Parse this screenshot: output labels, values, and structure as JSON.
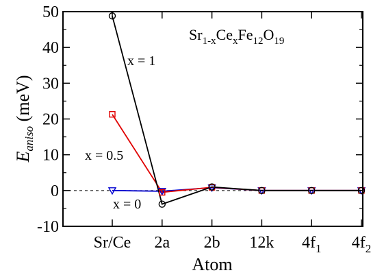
{
  "chart_data": {
    "type": "line",
    "title": {
      "base": "Sr",
      "s1": "1-x",
      "mid1": "Ce",
      "s2": "x",
      "mid2": "Fe",
      "s3": "12",
      "mid3": "O",
      "s4": "19"
    },
    "xlabel": "Atom",
    "ylabel": {
      "main": "E",
      "sub": "aniso",
      "rest": " (meV)"
    },
    "categories": [
      {
        "label": "Sr/Ce",
        "sub": ""
      },
      {
        "label": "2a",
        "sub": ""
      },
      {
        "label": "2b",
        "sub": ""
      },
      {
        "label": "12k",
        "sub": ""
      },
      {
        "label": "4f",
        "sub": "1"
      },
      {
        "label": "4f",
        "sub": "2"
      }
    ],
    "ylim": [
      -10,
      50
    ],
    "yticks": [
      -10,
      0,
      10,
      20,
      30,
      40,
      50
    ],
    "reference_line": 0,
    "grid": false,
    "series": [
      {
        "name": "x = 1",
        "color": "#000000",
        "marker": "circle",
        "values": [
          48.8,
          -3.8,
          1.0,
          0.0,
          0.0,
          0.0
        ]
      },
      {
        "name": "x = 0.5",
        "color": "#e00000",
        "marker": "square",
        "values": [
          21.3,
          -0.5,
          0.9,
          0.0,
          0.0,
          0.0
        ]
      },
      {
        "name": "x = 0",
        "color": "#0000d0",
        "marker": "triangle-down",
        "values": [
          0.0,
          -0.2,
          0.8,
          0.0,
          0.0,
          0.0
        ]
      }
    ]
  }
}
